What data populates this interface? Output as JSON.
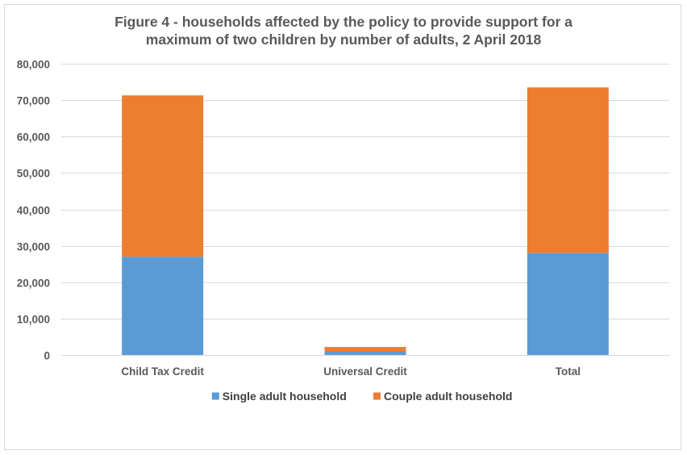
{
  "chart_data": {
    "type": "bar",
    "stacked": true,
    "title_lines": [
      "Figure 4 - households affected by the policy to provide support for a",
      "maximum of two children by number of adults, 2 April 2018"
    ],
    "categories": [
      "Child Tax Credit",
      "Universal Credit",
      "Total"
    ],
    "series": [
      {
        "name": "Single adult household",
        "values": [
          27000,
          1000,
          28000
        ],
        "color": "#5b9bd5"
      },
      {
        "name": "Couple adult household",
        "values": [
          44300,
          1200,
          45500
        ],
        "color": "#ed7d31"
      }
    ],
    "ylim": [
      0,
      80000
    ],
    "yticks": [
      0,
      10000,
      20000,
      30000,
      40000,
      50000,
      60000,
      70000,
      80000
    ],
    "ytick_labels": [
      "0",
      "10,000",
      "20,000",
      "30,000",
      "40,000",
      "50,000",
      "60,000",
      "70,000",
      "80,000"
    ],
    "grid": true,
    "legend_position": "bottom"
  }
}
